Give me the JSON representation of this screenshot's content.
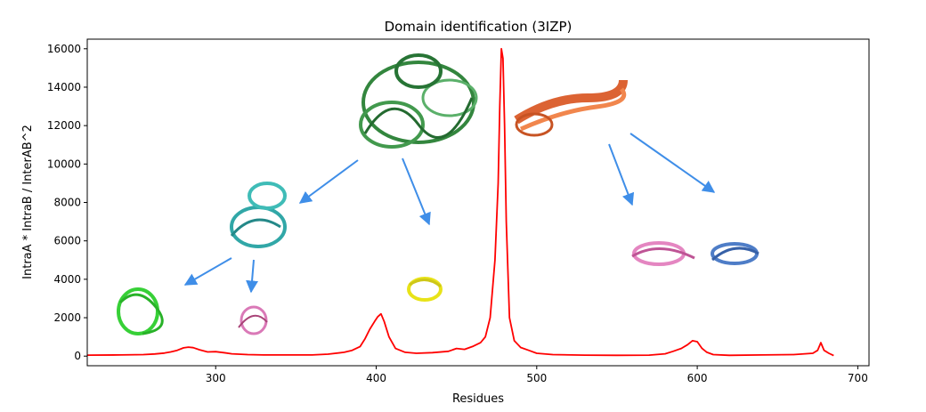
{
  "chart_data": {
    "type": "line",
    "title": "Domain identification (3IZP)",
    "xlabel": "Residues",
    "ylabel": "IntraA * IntraB / InterAB^2",
    "xlim": [
      220,
      707
    ],
    "ylim": [
      -500,
      16500
    ],
    "x_ticks": [
      300,
      400,
      500,
      600,
      700
    ],
    "y_ticks": [
      0,
      2000,
      4000,
      6000,
      8000,
      10000,
      12000,
      14000,
      16000
    ],
    "grid": false,
    "series": [
      {
        "color": "#ff0000",
        "x": [
          220,
          240,
          255,
          262,
          268,
          272,
          276,
          280,
          283,
          286,
          290,
          295,
          300,
          305,
          310,
          320,
          330,
          340,
          350,
          360,
          370,
          380,
          385,
          390,
          393,
          396,
          399,
          401,
          403,
          405,
          408,
          412,
          418,
          425,
          435,
          445,
          450,
          455,
          460,
          465,
          468,
          471,
          474,
          476,
          477,
          478,
          479,
          480,
          481,
          483,
          486,
          490,
          495,
          500,
          510,
          530,
          550,
          570,
          580,
          585,
          590,
          594,
          597,
          600,
          603,
          606,
          610,
          620,
          640,
          660,
          672,
          675,
          677,
          679,
          682,
          685
        ],
        "y": [
          50,
          60,
          80,
          110,
          160,
          220,
          300,
          430,
          470,
          440,
          330,
          220,
          230,
          180,
          120,
          80,
          60,
          60,
          60,
          60,
          100,
          200,
          300,
          500,
          900,
          1400,
          1800,
          2050,
          2200,
          1800,
          1000,
          400,
          200,
          150,
          180,
          250,
          400,
          350,
          500,
          700,
          1000,
          2000,
          5000,
          9000,
          13000,
          16000,
          15500,
          12000,
          7000,
          2000,
          800,
          450,
          300,
          150,
          80,
          50,
          40,
          50,
          120,
          250,
          400,
          600,
          800,
          750,
          400,
          200,
          80,
          40,
          60,
          80,
          150,
          300,
          700,
          300,
          150,
          30
        ]
      }
    ]
  }
}
